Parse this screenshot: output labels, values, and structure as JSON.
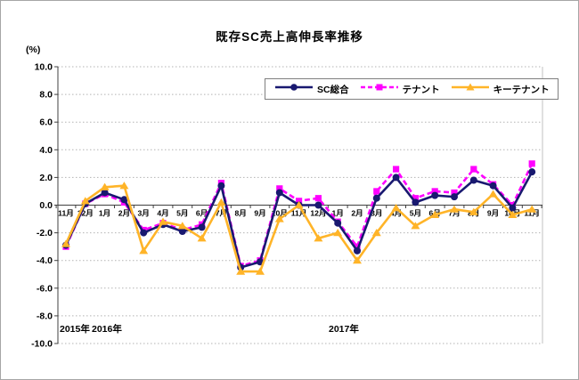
{
  "figure": {
    "title": "既存SC売上高伸長率推移",
    "y_unit_label": "(%)"
  },
  "chart_data": {
    "type": "line",
    "title": "既存SC売上高伸長率推移",
    "ylabel": "(%)",
    "ylim": [
      -10.0,
      10.0
    ],
    "ytick_step": 2.0,
    "grid": true,
    "legend_position": "top-center-inside",
    "categories": [
      "11月",
      "12月",
      "1月",
      "2月",
      "3月",
      "4月",
      "5月",
      "6月",
      "7月",
      "8月",
      "9月",
      "10月",
      "11月",
      "12月",
      "1月",
      "2月",
      "3月",
      "4月",
      "5月",
      "6月",
      "7月",
      "8月",
      "9月",
      "10月",
      "11月"
    ],
    "year_groups": [
      "2015年",
      "2016年",
      "2017年"
    ],
    "series": [
      {
        "name": "SC総合",
        "color": "#191970",
        "style": "solid",
        "marker": "circle",
        "values": [
          -2.9,
          0.1,
          0.9,
          0.4,
          -2.0,
          -1.4,
          -1.9,
          -1.6,
          1.4,
          -4.5,
          -4.1,
          0.9,
          0.0,
          0.0,
          -1.3,
          -3.3,
          0.5,
          2.0,
          0.2,
          0.7,
          0.6,
          1.8,
          1.4,
          -0.2,
          2.4
        ]
      },
      {
        "name": "テナント",
        "color": "#FF00FF",
        "style": "dashed",
        "marker": "square",
        "values": [
          -3.0,
          0.1,
          0.8,
          0.2,
          -1.8,
          -1.3,
          -1.8,
          -1.4,
          1.6,
          -4.4,
          -4.0,
          1.2,
          0.3,
          0.5,
          -1.2,
          -3.0,
          1.0,
          2.6,
          0.5,
          1.0,
          0.9,
          2.6,
          1.5,
          0.0,
          3.0
        ]
      },
      {
        "name": "キーテナント",
        "color": "#FFB428",
        "style": "solid",
        "marker": "triangle",
        "values": [
          -2.8,
          0.3,
          1.3,
          1.4,
          -3.3,
          -1.2,
          -1.5,
          -2.4,
          0.2,
          -4.8,
          -4.8,
          -1.0,
          0.0,
          -2.4,
          -2.0,
          -4.0,
          -2.0,
          -0.2,
          -1.5,
          -0.7,
          -0.3,
          -0.5,
          0.8,
          -0.7,
          -0.3
        ]
      }
    ]
  }
}
